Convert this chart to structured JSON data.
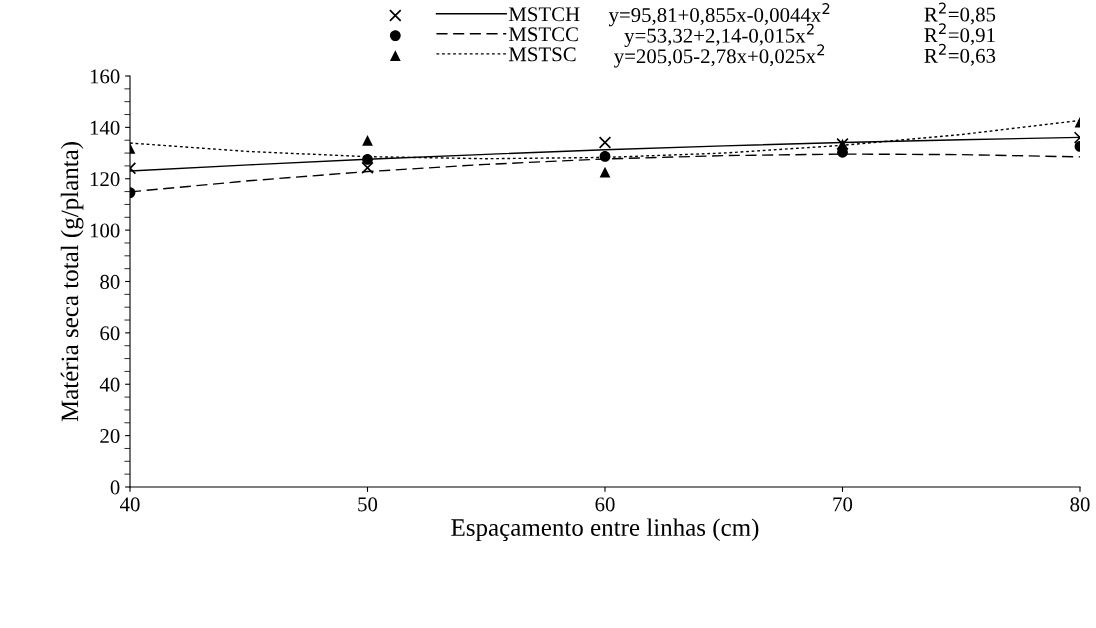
{
  "chart_data": {
    "type": "scatter",
    "xlabel": "Espaçamento entre linhas (cm)",
    "ylabel": "Matéria seca total (g/planta)",
    "xlim": [
      40,
      80
    ],
    "xticks": [
      40,
      50,
      60,
      70,
      80
    ],
    "ylim": [
      0,
      160
    ],
    "yticks": [
      0,
      20,
      40,
      60,
      80,
      100,
      120,
      140,
      160
    ],
    "grid": false,
    "legend": "top",
    "series": [
      {
        "name": "MSTCH",
        "marker": "cross",
        "color": "#000000",
        "x": [
          40,
          50,
          60,
          70,
          80
        ],
        "values": [
          124.1,
          124.3,
          134.1,
          133.5,
          136.0
        ]
      },
      {
        "name": "MSTCC",
        "marker": "circle",
        "color": "#000000",
        "x": [
          40,
          50,
          60,
          70,
          80
        ],
        "values": [
          114.6,
          127.5,
          128.7,
          130.3,
          132.6
        ]
      },
      {
        "name": "MSTSC",
        "marker": "triangle",
        "color": "#000000",
        "x": [
          40,
          50,
          60,
          70,
          80
        ],
        "values": [
          131.8,
          134.9,
          122.6,
          133.5,
          142.0
        ]
      },
      {
        "type": "line",
        "line_style": "solid",
        "color": "#000000",
        "x": [
          40,
          45,
          50,
          55,
          60,
          65,
          70,
          75,
          80
        ],
        "values": [
          123.0,
          125.4,
          127.6,
          129.5,
          131.3,
          132.8,
          134.1,
          135.2,
          136.1
        ]
      },
      {
        "type": "line",
        "line_style": "dashed",
        "color": "#000000",
        "x": [
          40,
          45,
          50,
          55,
          60,
          65,
          70,
          75,
          80
        ],
        "values": [
          114.9,
          119.2,
          122.8,
          125.6,
          127.7,
          129.0,
          129.6,
          129.4,
          128.5
        ]
      },
      {
        "type": "line",
        "line_style": "dotted",
        "color": "#000000",
        "x": [
          40,
          45,
          50,
          55,
          60,
          65,
          70,
          75,
          80
        ],
        "values": [
          133.9,
          130.6,
          128.6,
          127.8,
          128.3,
          130.0,
          133.0,
          137.2,
          142.7
        ]
      }
    ],
    "annotations": [
      "y=95,81+0,855x-0,0044x$^{2}$",
      "R$^{2}$=0,85",
      "y=53,32+2,14-0,015x$^{2}$",
      "R$^{2}$=0,91",
      "y=205,05-2,78x+0,025x$^{2}$",
      "R$^{2}$=0,63"
    ]
  }
}
